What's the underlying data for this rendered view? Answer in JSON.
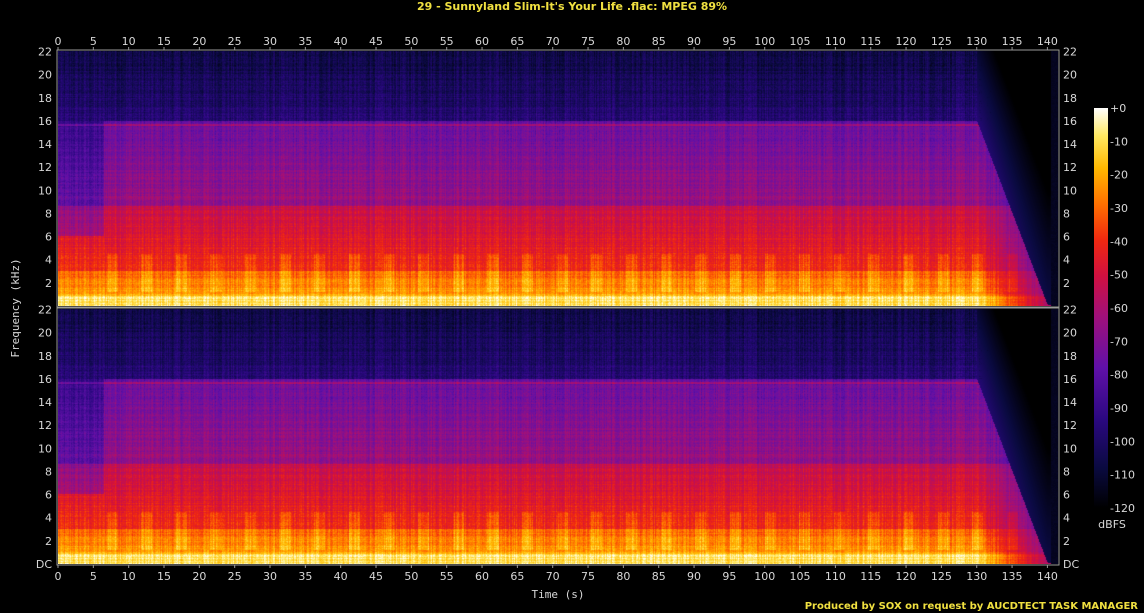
{
  "chart_data": {
    "type": "heatmap",
    "title": "29 - Sunnyland Slim-It's Your Life .flac: MPEG 89%",
    "xlabel": "Time (s)",
    "ylabel": "Frequency (kHz)",
    "x_range": [
      0,
      141.5
    ],
    "y_range_khz": [
      0,
      22.05
    ],
    "x_ticks": [
      "0",
      "5",
      "10",
      "15",
      "20",
      "25",
      "30",
      "35",
      "40",
      "45",
      "50",
      "55",
      "60",
      "65",
      "70",
      "75",
      "80",
      "85",
      "90",
      "95",
      "100",
      "105",
      "110",
      "115",
      "120",
      "125",
      "130",
      "135",
      "140"
    ],
    "y_ticks_top": [
      "2",
      "4",
      "6",
      "8",
      "10",
      "12",
      "14",
      "16",
      "18",
      "20",
      "22"
    ],
    "y_ticks_bottom": [
      "DC",
      "2",
      "4",
      "6",
      "8",
      "10",
      "12",
      "14",
      "16",
      "18",
      "20",
      "22"
    ],
    "channels": 2,
    "colorbar": {
      "label": "dBFS",
      "ticks": [
        "+0",
        "-10",
        "-20",
        "-30",
        "-40",
        "-50",
        "-60",
        "-70",
        "-80",
        "-90",
        "-100",
        "-110",
        "-120"
      ],
      "range_db": [
        -120,
        0
      ]
    },
    "features": {
      "lowpass_cutoff_khz": 16,
      "intro_end_s": 6.5,
      "fade_out_s": [
        130,
        140
      ],
      "track_end_s": 140.5
    },
    "credit": "Produced by SOX on request by AUCDTECT TASK MANAGER"
  }
}
